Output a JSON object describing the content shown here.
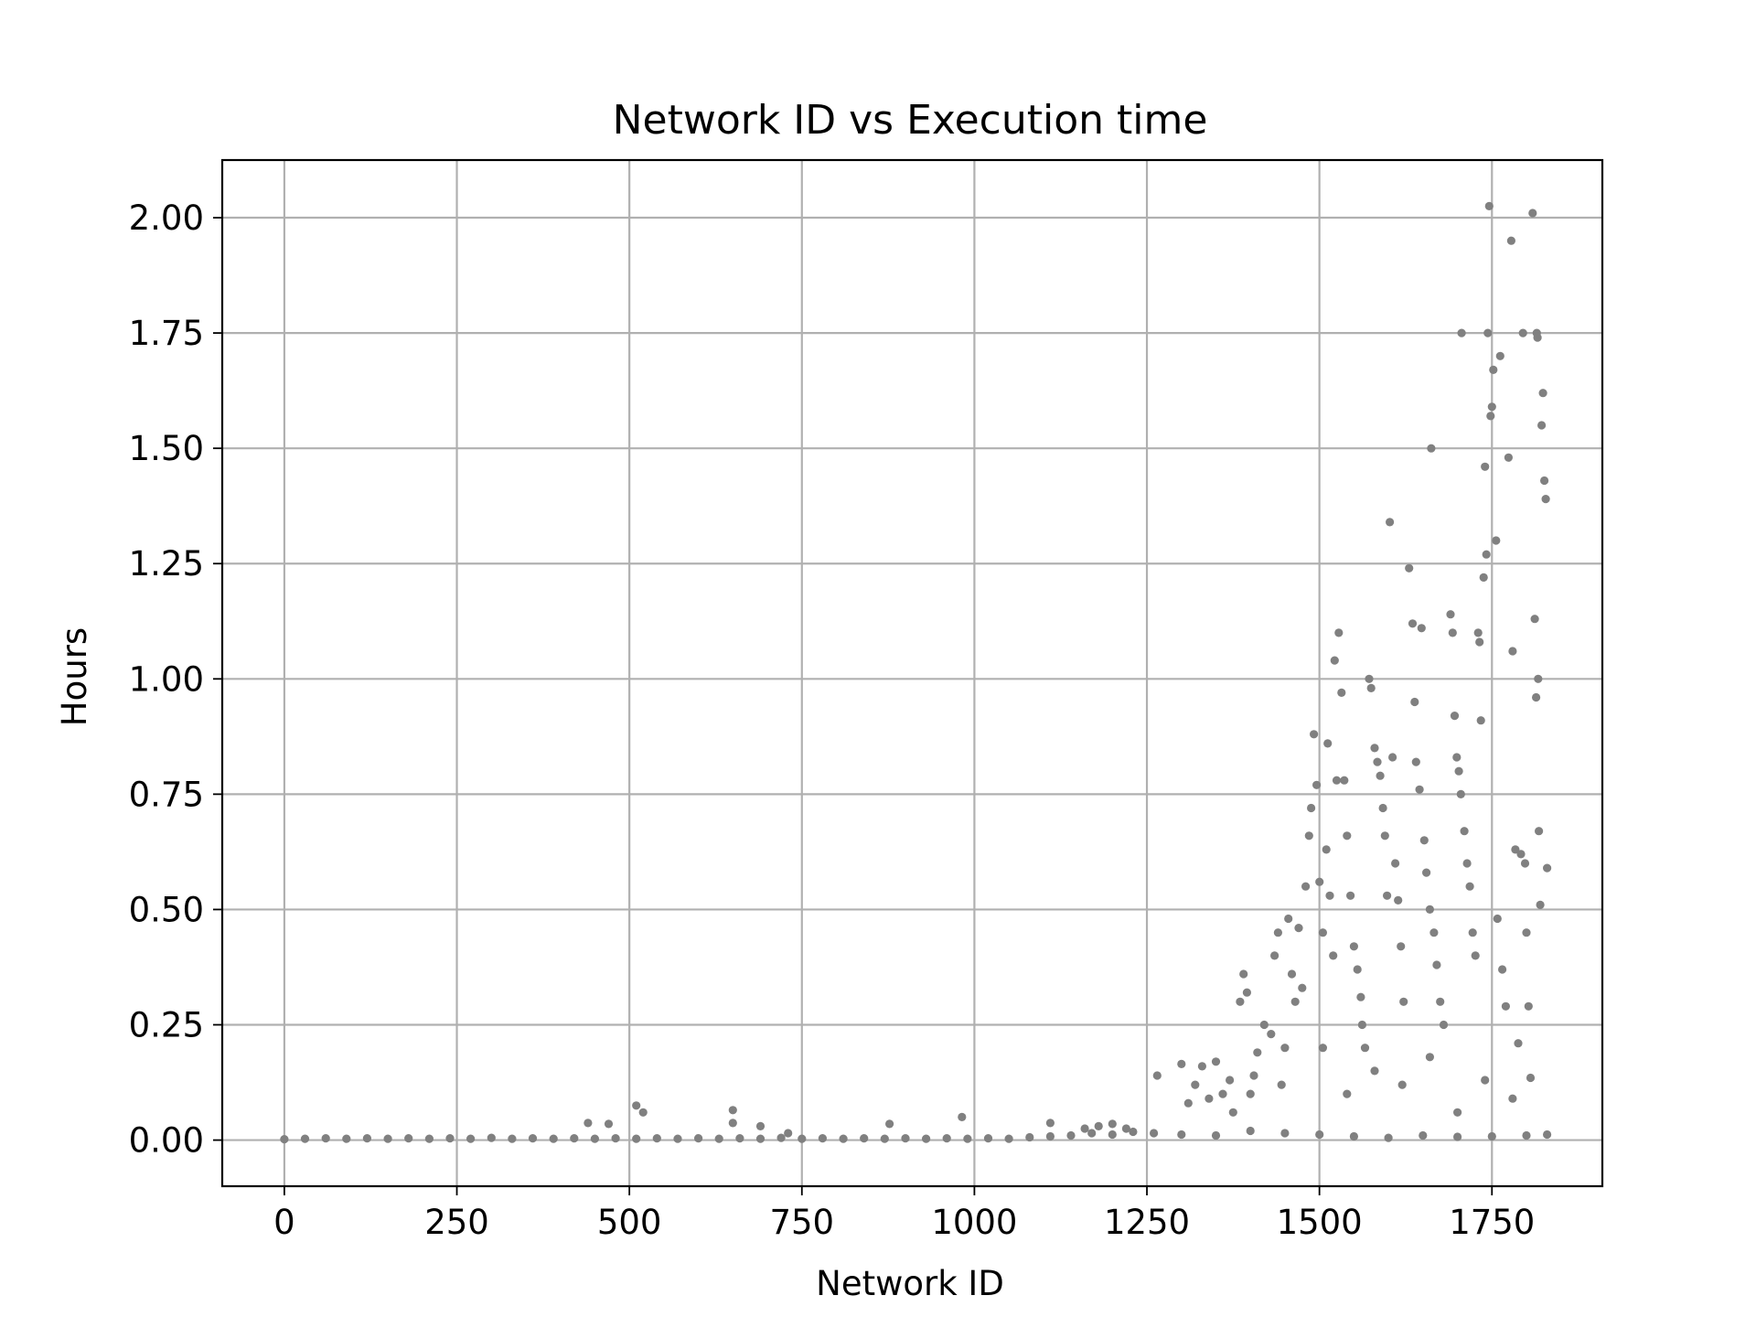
{
  "chart_data": {
    "type": "scatter",
    "title": "Network ID vs Execution time",
    "xlabel": "Network ID",
    "ylabel": "Hours",
    "xlim": [
      -90,
      1910
    ],
    "ylim": [
      -0.1,
      2.125
    ],
    "xticks": [
      0,
      250,
      500,
      750,
      1000,
      1250,
      1500,
      1750
    ],
    "xtick_labels": [
      "0",
      "250",
      "500",
      "750",
      "1000",
      "1250",
      "1500",
      "1750"
    ],
    "yticks": [
      0.0,
      0.25,
      0.5,
      0.75,
      1.0,
      1.25,
      1.5,
      1.75,
      2.0
    ],
    "ytick_labels": [
      "0.00",
      "0.25",
      "0.50",
      "0.75",
      "1.00",
      "1.25",
      "1.50",
      "1.75",
      "2.00"
    ],
    "grid": true,
    "marker_color": "#808080",
    "series": [
      {
        "points": [
          [
            0,
            0.002
          ],
          [
            30,
            0.003
          ],
          [
            60,
            0.004
          ],
          [
            90,
            0.003
          ],
          [
            120,
            0.004
          ],
          [
            150,
            0.003
          ],
          [
            180,
            0.004
          ],
          [
            210,
            0.003
          ],
          [
            240,
            0.004
          ],
          [
            270,
            0.003
          ],
          [
            300,
            0.005
          ],
          [
            330,
            0.003
          ],
          [
            360,
            0.004
          ],
          [
            390,
            0.003
          ],
          [
            420,
            0.004
          ],
          [
            450,
            0.003
          ],
          [
            480,
            0.004
          ],
          [
            510,
            0.003
          ],
          [
            540,
            0.004
          ],
          [
            570,
            0.003
          ],
          [
            600,
            0.004
          ],
          [
            630,
            0.003
          ],
          [
            660,
            0.004
          ],
          [
            690,
            0.003
          ],
          [
            720,
            0.005
          ],
          [
            750,
            0.003
          ],
          [
            780,
            0.004
          ],
          [
            810,
            0.003
          ],
          [
            840,
            0.004
          ],
          [
            870,
            0.003
          ],
          [
            900,
            0.004
          ],
          [
            930,
            0.003
          ],
          [
            960,
            0.004
          ],
          [
            990,
            0.003
          ],
          [
            1020,
            0.004
          ],
          [
            1050,
            0.003
          ],
          [
            1080,
            0.006
          ],
          [
            1110,
            0.008
          ],
          [
            1140,
            0.01
          ],
          [
            1170,
            0.015
          ],
          [
            1200,
            0.012
          ],
          [
            1230,
            0.018
          ],
          [
            1260,
            0.015
          ],
          [
            440,
            0.037
          ],
          [
            470,
            0.035
          ],
          [
            510,
            0.075
          ],
          [
            520,
            0.06
          ],
          [
            650,
            0.065
          ],
          [
            650,
            0.037
          ],
          [
            690,
            0.03
          ],
          [
            730,
            0.015
          ],
          [
            877,
            0.035
          ],
          [
            982,
            0.05
          ],
          [
            1110,
            0.037
          ],
          [
            1160,
            0.025
          ],
          [
            1180,
            0.03
          ],
          [
            1200,
            0.035
          ],
          [
            1220,
            0.025
          ],
          [
            1265,
            0.14
          ],
          [
            1300,
            0.165
          ],
          [
            1310,
            0.08
          ],
          [
            1320,
            0.12
          ],
          [
            1330,
            0.16
          ],
          [
            1340,
            0.09
          ],
          [
            1350,
            0.17
          ],
          [
            1360,
            0.1
          ],
          [
            1370,
            0.13
          ],
          [
            1375,
            0.06
          ],
          [
            1385,
            0.3
          ],
          [
            1390,
            0.36
          ],
          [
            1395,
            0.32
          ],
          [
            1400,
            0.1
          ],
          [
            1405,
            0.14
          ],
          [
            1410,
            0.19
          ],
          [
            1420,
            0.25
          ],
          [
            1430,
            0.23
          ],
          [
            1435,
            0.4
          ],
          [
            1440,
            0.45
          ],
          [
            1445,
            0.12
          ],
          [
            1450,
            0.2
          ],
          [
            1455,
            0.48
          ],
          [
            1460,
            0.36
          ],
          [
            1465,
            0.3
          ],
          [
            1470,
            0.46
          ],
          [
            1475,
            0.33
          ],
          [
            1480,
            0.55
          ],
          [
            1485,
            0.66
          ],
          [
            1488,
            0.72
          ],
          [
            1492,
            0.88
          ],
          [
            1496,
            0.77
          ],
          [
            1500,
            0.56
          ],
          [
            1505,
            0.45
          ],
          [
            1510,
            0.63
          ],
          [
            1512,
            0.86
          ],
          [
            1515,
            0.53
          ],
          [
            1520,
            0.4
          ],
          [
            1522,
            1.04
          ],
          [
            1525,
            0.78
          ],
          [
            1528,
            1.1
          ],
          [
            1532,
            0.97
          ],
          [
            1536,
            0.78
          ],
          [
            1540,
            0.66
          ],
          [
            1545,
            0.53
          ],
          [
            1550,
            0.42
          ],
          [
            1555,
            0.37
          ],
          [
            1560,
            0.31
          ],
          [
            1562,
            0.25
          ],
          [
            1566,
            0.2
          ],
          [
            1572,
            1.0
          ],
          [
            1575,
            0.98
          ],
          [
            1580,
            0.85
          ],
          [
            1584,
            0.82
          ],
          [
            1588,
            0.79
          ],
          [
            1592,
            0.72
          ],
          [
            1595,
            0.66
          ],
          [
            1598,
            0.53
          ],
          [
            1602,
            1.34
          ],
          [
            1606,
            0.83
          ],
          [
            1610,
            0.6
          ],
          [
            1614,
            0.52
          ],
          [
            1618,
            0.42
          ],
          [
            1622,
            0.3
          ],
          [
            1630,
            1.24
          ],
          [
            1635,
            1.12
          ],
          [
            1638,
            0.95
          ],
          [
            1640,
            0.82
          ],
          [
            1645,
            0.76
          ],
          [
            1648,
            1.11
          ],
          [
            1652,
            0.65
          ],
          [
            1655,
            0.58
          ],
          [
            1660,
            0.5
          ],
          [
            1662,
            1.5
          ],
          [
            1666,
            0.45
          ],
          [
            1670,
            0.38
          ],
          [
            1675,
            0.3
          ],
          [
            1680,
            0.25
          ],
          [
            1690,
            1.14
          ],
          [
            1693,
            1.1
          ],
          [
            1696,
            0.92
          ],
          [
            1699,
            0.83
          ],
          [
            1702,
            0.8
          ],
          [
            1705,
            0.75
          ],
          [
            1706,
            1.75
          ],
          [
            1710,
            0.67
          ],
          [
            1714,
            0.6
          ],
          [
            1718,
            0.55
          ],
          [
            1722,
            0.45
          ],
          [
            1726,
            0.4
          ],
          [
            1730,
            1.1
          ],
          [
            1732,
            1.08
          ],
          [
            1734,
            0.91
          ],
          [
            1738,
            1.22
          ],
          [
            1740,
            1.46
          ],
          [
            1742,
            1.27
          ],
          [
            1744,
            1.75
          ],
          [
            1746,
            2.025
          ],
          [
            1748,
            1.57
          ],
          [
            1750,
            1.59
          ],
          [
            1752,
            1.67
          ],
          [
            1756,
            1.3
          ],
          [
            1758,
            0.48
          ],
          [
            1762,
            1.7
          ],
          [
            1765,
            0.37
          ],
          [
            1770,
            0.29
          ],
          [
            1774,
            1.48
          ],
          [
            1778,
            1.95
          ],
          [
            1780,
            1.06
          ],
          [
            1784,
            0.63
          ],
          [
            1788,
            0.21
          ],
          [
            1792,
            0.62
          ],
          [
            1795,
            1.75
          ],
          [
            1798,
            0.6
          ],
          [
            1800,
            0.45
          ],
          [
            1803,
            0.29
          ],
          [
            1806,
            0.135
          ],
          [
            1809,
            2.01
          ],
          [
            1812,
            1.13
          ],
          [
            1814,
            0.96
          ],
          [
            1815,
            1.75
          ],
          [
            1816,
            1.74
          ],
          [
            1817,
            1.0
          ],
          [
            1818,
            0.67
          ],
          [
            1820,
            0.51
          ],
          [
            1822,
            1.55
          ],
          [
            1824,
            1.62
          ],
          [
            1826,
            1.43
          ],
          [
            1828,
            1.39
          ],
          [
            1830,
            0.59
          ],
          [
            1505,
            0.2
          ],
          [
            1540,
            0.1
          ],
          [
            1580,
            0.15
          ],
          [
            1620,
            0.12
          ],
          [
            1660,
            0.18
          ],
          [
            1700,
            0.06
          ],
          [
            1740,
            0.13
          ],
          [
            1780,
            0.09
          ],
          [
            1650,
            0.01
          ],
          [
            1600,
            0.005
          ],
          [
            1550,
            0.008
          ],
          [
            1500,
            0.012
          ],
          [
            1450,
            0.015
          ],
          [
            1400,
            0.02
          ],
          [
            1350,
            0.01
          ],
          [
            1300,
            0.012
          ],
          [
            1700,
            0.007
          ],
          [
            1750,
            0.008
          ],
          [
            1800,
            0.01
          ],
          [
            1830,
            0.012
          ]
        ]
      }
    ]
  }
}
